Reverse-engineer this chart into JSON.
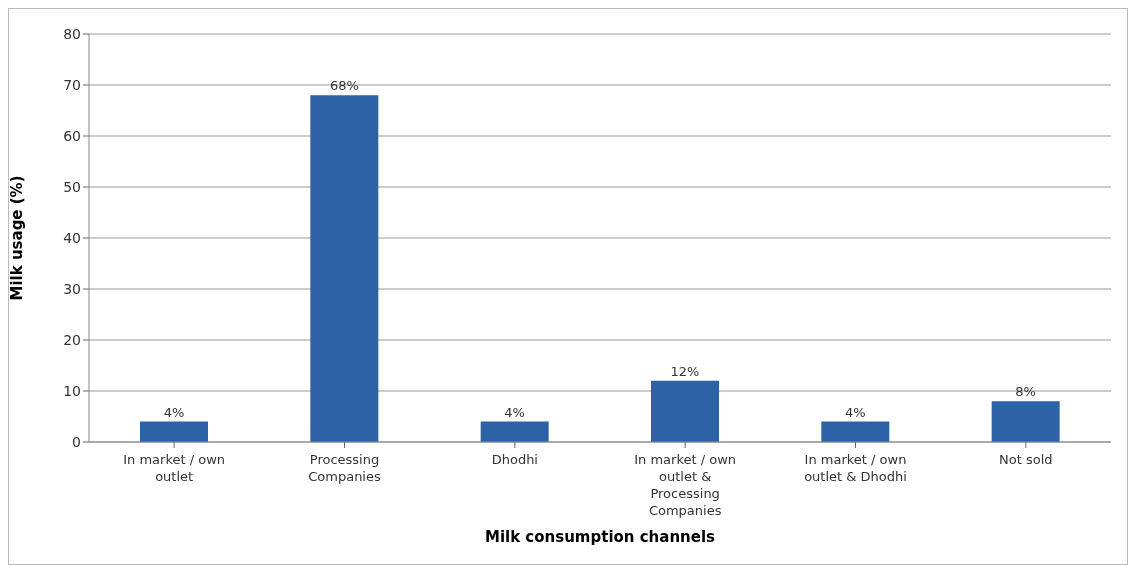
{
  "chart_data": {
    "type": "bar",
    "xlabel": "Milk consumption channels",
    "ylabel": "Milk usage (%)",
    "categories": [
      "In market / own outlet",
      "Processing Companies",
      "Dhodhi",
      "In market / own outlet & Processing Companies",
      "In market / own outlet & Dhodhi",
      "Not sold"
    ],
    "values": [
      4,
      68,
      4,
      12,
      4,
      8
    ],
    "value_labels": [
      "4%",
      "68%",
      "4%",
      "12%",
      "4%",
      "8%"
    ],
    "color": "#2e62a6",
    "ylim": [
      0,
      80
    ],
    "yticks": [
      0,
      10,
      20,
      30,
      40,
      50,
      60,
      70,
      80
    ],
    "grid": "y"
  }
}
